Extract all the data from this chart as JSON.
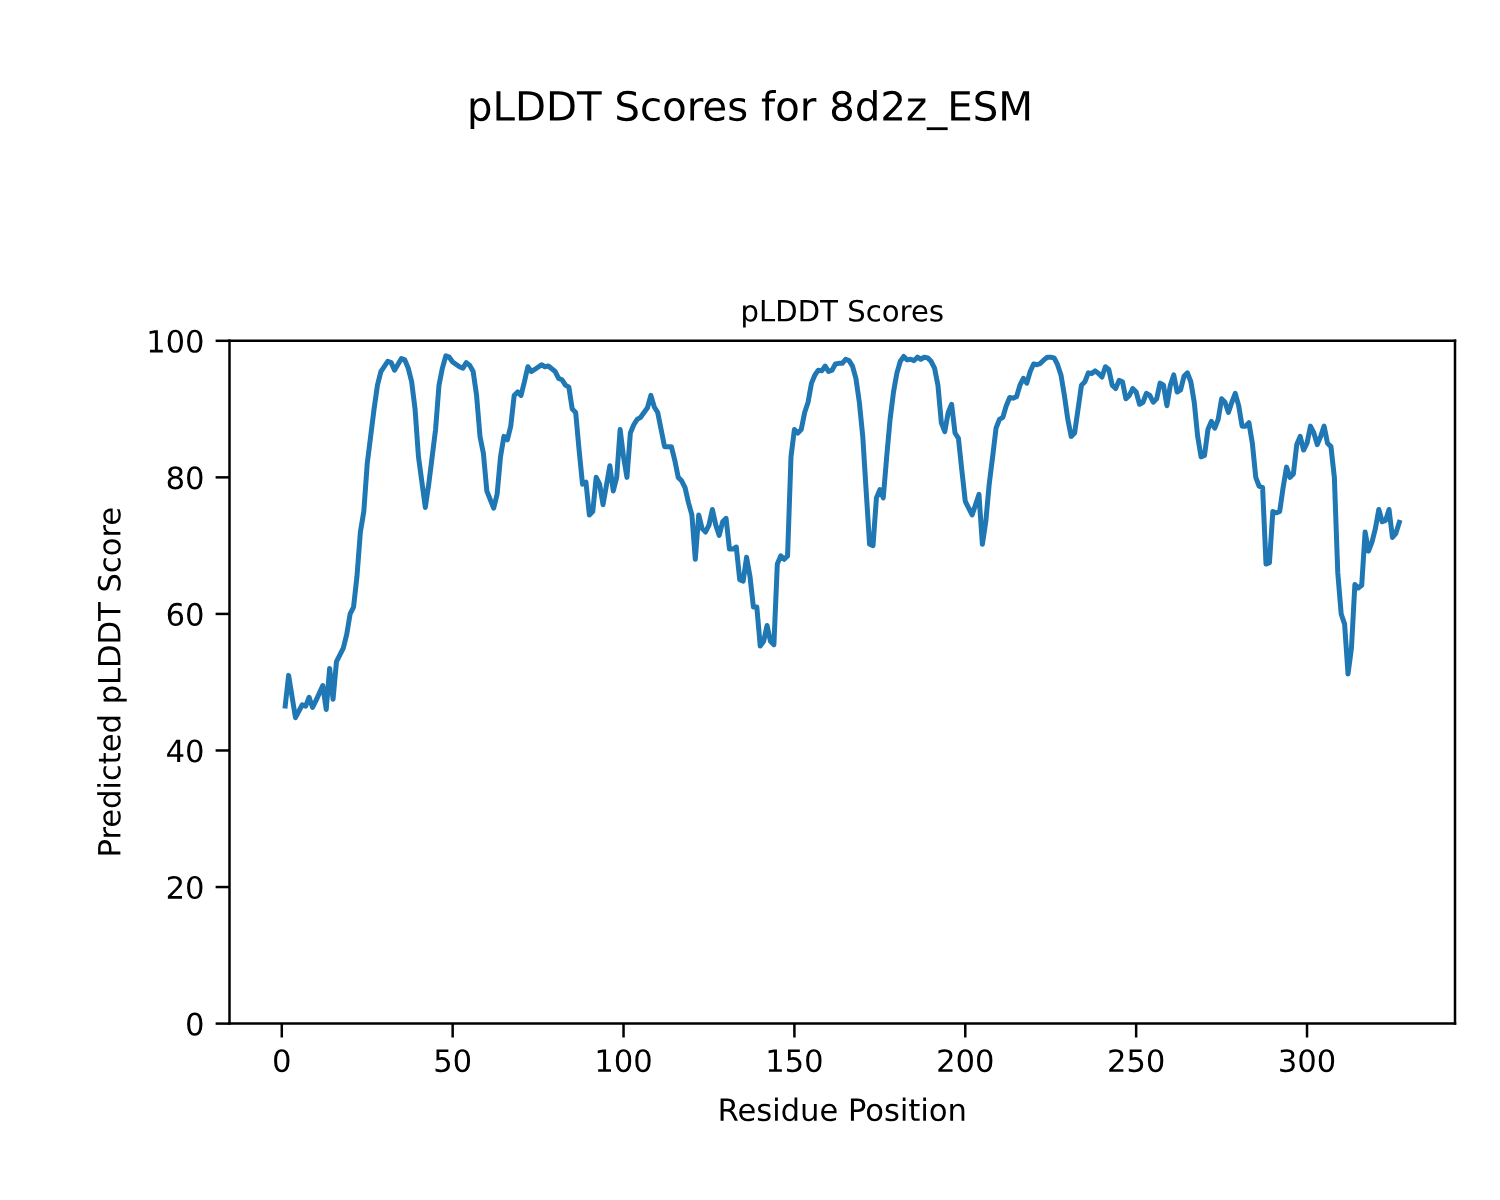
{
  "chart_data": {
    "type": "line",
    "title": "pLDDT Scores for 8d2z_ESM",
    "subtitle": "pLDDT Scores",
    "xlabel": "Residue Position",
    "ylabel": "Predicted pLDDT Score",
    "xlim": [
      -15.3,
      343.3
    ],
    "ylim": [
      0,
      100
    ],
    "xticks": [
      0,
      50,
      100,
      150,
      200,
      250,
      300
    ],
    "yticks": [
      0,
      20,
      40,
      60,
      80,
      100
    ],
    "grid": false,
    "legend": false,
    "marker": "none",
    "line_style": "solid",
    "series": [
      {
        "color": "#1f77b4",
        "x": [
          1,
          2,
          4,
          6,
          7,
          8,
          9,
          10,
          12,
          13,
          14,
          15,
          16,
          18,
          19,
          20,
          21,
          22,
          23,
          24,
          25,
          27,
          28,
          29,
          31,
          32,
          33,
          35,
          36,
          37,
          38,
          39,
          40,
          42,
          43,
          45,
          46,
          47,
          48,
          49,
          50,
          52,
          53,
          54,
          55,
          56,
          57,
          58,
          59,
          60,
          62,
          63,
          64,
          65,
          66,
          67,
          68,
          69,
          70,
          71,
          72,
          73,
          74,
          76,
          77,
          78,
          80,
          81,
          82,
          83,
          84,
          85,
          86,
          87,
          88,
          89,
          90,
          91,
          92,
          93,
          94,
          96,
          97,
          98,
          99,
          100,
          101,
          102,
          103,
          104,
          105,
          106,
          107,
          108,
          109,
          110,
          111,
          112,
          113,
          114,
          115,
          116,
          117,
          118,
          119,
          120,
          121,
          122,
          123,
          124,
          125,
          126,
          127,
          128,
          129,
          130,
          131,
          132,
          133,
          134,
          135,
          136,
          137,
          138,
          139,
          140,
          141,
          142,
          143,
          144,
          145,
          146,
          147,
          148,
          149,
          150,
          151,
          152,
          153,
          154,
          155,
          156,
          157,
          158,
          159,
          160,
          161,
          162,
          163,
          164,
          165,
          166,
          167,
          168,
          169,
          170,
          171,
          172,
          173,
          174,
          175,
          176,
          177,
          178,
          179,
          180,
          181,
          182,
          183,
          184,
          185,
          186,
          187,
          188,
          189,
          190,
          191,
          192,
          193,
          194,
          195,
          196,
          197,
          198,
          199,
          200,
          201,
          202,
          203,
          204,
          205,
          206,
          207,
          208,
          209,
          210,
          211,
          212,
          213,
          214,
          215,
          216,
          217,
          218,
          219,
          220,
          221,
          222,
          223,
          224,
          225,
          226,
          227,
          228,
          229,
          230,
          231,
          232,
          233,
          234,
          235,
          236,
          237,
          238,
          239,
          240,
          241,
          242,
          243,
          244,
          245,
          246,
          247,
          248,
          249,
          250,
          251,
          252,
          253,
          254,
          255,
          256,
          257,
          258,
          259,
          260,
          261,
          262,
          263,
          264,
          265,
          266,
          267,
          268,
          269,
          270,
          271,
          272,
          273,
          274,
          275,
          276,
          277,
          278,
          279,
          280,
          281,
          282,
          283,
          284,
          285,
          286,
          287,
          288,
          289,
          290,
          291,
          292,
          293,
          294,
          295,
          296,
          297,
          298,
          299,
          300,
          301,
          302,
          303,
          304,
          305,
          306,
          307,
          308,
          309,
          310,
          311,
          312,
          313,
          314,
          315,
          316,
          317,
          318,
          319,
          320,
          321,
          322,
          323,
          324,
          325,
          326,
          327
        ],
        "values": [
          46.5,
          51,
          44.8,
          46.7,
          46.5,
          47.8,
          46.3,
          47.3,
          49.5,
          46,
          52,
          47.5,
          53,
          55,
          57,
          60,
          61,
          65.5,
          72,
          75,
          82,
          90,
          93.5,
          95.5,
          97,
          96.8,
          95.7,
          97.4,
          97.2,
          96,
          94,
          90,
          83,
          75.6,
          79,
          87,
          93.5,
          96,
          97.8,
          97.6,
          96.9,
          96.2,
          96,
          96.8,
          96.4,
          95.5,
          92,
          86,
          83.5,
          78,
          75.5,
          77.5,
          83,
          86,
          85.5,
          87.5,
          92,
          92.5,
          92,
          94,
          96.2,
          95.5,
          95.8,
          96.5,
          96.2,
          96.3,
          95.5,
          94.5,
          94.3,
          93.5,
          93.2,
          90,
          89.5,
          84,
          79,
          79.3,
          74.5,
          75,
          80,
          79,
          76,
          81.7,
          78,
          80,
          87,
          83,
          80,
          86.5,
          87.7,
          88.5,
          88.8,
          89.5,
          90.2,
          92,
          90.3,
          89.5,
          87,
          84.5,
          84.5,
          84.5,
          82.5,
          80,
          79.5,
          78.5,
          76.3,
          74.5,
          68,
          74.5,
          72.5,
          72,
          73,
          75.3,
          73,
          71.5,
          73.5,
          74,
          69.5,
          69.5,
          69.8,
          65,
          64.8,
          68.3,
          65.5,
          61,
          61,
          55.3,
          56,
          58.3,
          56,
          55.5,
          67.3,
          68.5,
          68,
          68.5,
          83,
          87,
          86.5,
          87,
          89.5,
          91,
          93.8,
          95,
          95.7,
          95.6,
          96.3,
          95.5,
          95.7,
          96.6,
          96.7,
          96.7,
          97.3,
          97.1,
          96.3,
          94.5,
          91,
          86,
          78,
          70.2,
          70,
          77,
          78.2,
          77,
          83,
          88.5,
          92.5,
          95.3,
          97,
          97.7,
          97.2,
          97.3,
          97.1,
          97.6,
          97.3,
          97.6,
          97.5,
          97,
          96,
          93.5,
          88,
          86.7,
          89.5,
          90.7,
          86.5,
          85.7,
          81,
          76.5,
          75.5,
          74.5,
          76,
          77.5,
          70.2,
          73.5,
          79,
          83,
          87.2,
          88.5,
          88.8,
          90.5,
          91.7,
          91.6,
          91.8,
          93.5,
          94.5,
          93.8,
          95.5,
          96.6,
          96.5,
          96.7,
          97.2,
          97.6,
          97.6,
          97.5,
          96.5,
          95,
          92,
          88.5,
          86,
          86.5,
          90,
          93.5,
          94,
          95.3,
          95.2,
          95.6,
          95.2,
          94.7,
          96.2,
          95.8,
          93.5,
          93,
          94.2,
          94,
          91.5,
          92,
          93,
          92.5,
          90.7,
          91,
          92.3,
          92,
          91,
          91.5,
          93.8,
          93.5,
          90.5,
          93.5,
          95,
          92.5,
          92.8,
          94.8,
          95.3,
          94,
          91,
          86,
          83,
          83.2,
          87,
          88.2,
          87.2,
          88.5,
          91.5,
          91,
          89.5,
          91,
          92.3,
          90.5,
          87.5,
          87.5,
          88,
          85,
          80,
          78.7,
          78.5,
          67.3,
          67.5,
          75,
          74.8,
          75,
          78.5,
          81.5,
          80,
          80.5,
          84.8,
          86,
          84,
          85,
          87.5,
          86.5,
          84.8,
          86,
          87.5,
          85,
          84.5,
          80,
          66,
          60,
          58.5,
          51.2,
          55,
          64.3,
          63.8,
          64.2,
          72,
          69.2,
          70.5,
          72.5,
          75.3,
          73.5,
          73.7,
          75.3,
          71.2,
          71.8,
          73.4
        ]
      }
    ]
  }
}
